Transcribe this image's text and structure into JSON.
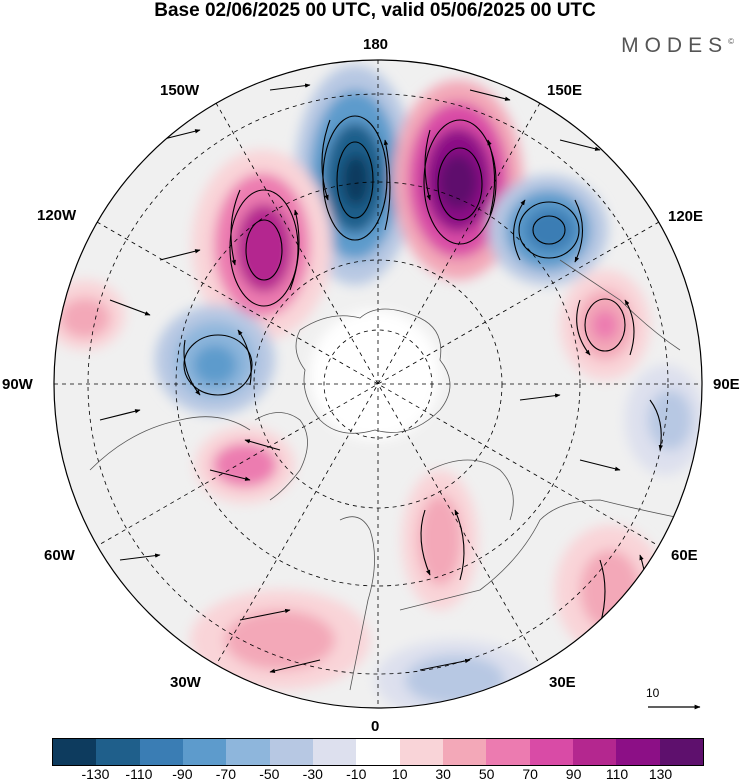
{
  "header": {
    "title": "Base 02/06/2025 00 UTC, valid 05/06/2025 00 UTC",
    "brand": "MODES"
  },
  "map": {
    "projection": "north-polar-stereographic",
    "longitude_labels": {
      "n180": "180",
      "e150": "150E",
      "e120": "120E",
      "e90": "90E",
      "e60": "60E",
      "e30": "30E",
      "n0": "0",
      "w30": "30W",
      "w60": "60W",
      "w90": "90W",
      "w120": "120W",
      "w150": "150W"
    },
    "reference_vector": "10",
    "colors": {
      "ocean_bg": "#f0f0f0",
      "coast": "#555555",
      "grid": "#000000"
    }
  },
  "colorbar": {
    "colors": [
      "#0d3b5e",
      "#1f5f8b",
      "#3a7db4",
      "#5d9bcc",
      "#8eb6dc",
      "#b7c8e3",
      "#dde0ee",
      "#ffffff",
      "#f9d4d8",
      "#f3a8b8",
      "#ec7bb0",
      "#d94ba6",
      "#b4278f",
      "#8c0f86",
      "#5e106d"
    ],
    "ticks": [
      "-130",
      "-110",
      "-90",
      "-70",
      "-50",
      "-30",
      "-10",
      "10",
      "30",
      "50",
      "70",
      "90",
      "110",
      "130"
    ]
  },
  "anomalies": [
    {
      "id": "blue-pacific-180",
      "color": "#1f5f8b"
    },
    {
      "id": "purple-150e",
      "color": "#8c0f86"
    },
    {
      "id": "pink-140w",
      "color": "#d94ba6"
    },
    {
      "id": "blue-130e",
      "color": "#3a7db4"
    },
    {
      "id": "blue-110w",
      "color": "#5d9bcc"
    },
    {
      "id": "pink-100e",
      "color": "#ec7bb0"
    },
    {
      "id": "pink-70w",
      "color": "#d94ba6"
    },
    {
      "id": "pink-20e",
      "color": "#f3a8b8"
    },
    {
      "id": "pink-40w-south",
      "color": "#f3a8b8"
    },
    {
      "id": "blue-20e-south",
      "color": "#b7c8e3"
    },
    {
      "id": "pink-60e",
      "color": "#f3a8b8"
    },
    {
      "id": "blue-80e",
      "color": "#b7c8e3"
    }
  ]
}
